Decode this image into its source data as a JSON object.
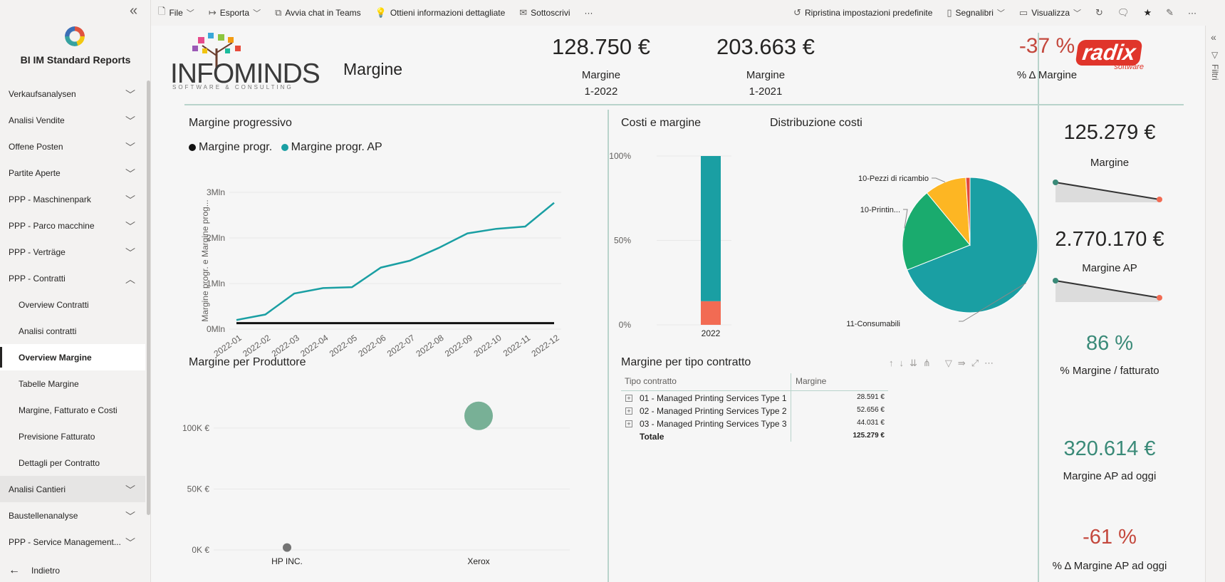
{
  "app": {
    "title": "BI IM Standard Reports"
  },
  "nav": {
    "items": [
      {
        "label": "Verkaufsanalysen",
        "level": 1,
        "chevron": "v"
      },
      {
        "label": "Analisi Vendite",
        "level": 1,
        "chevron": "v"
      },
      {
        "label": "Offene Posten",
        "level": 1,
        "chevron": "v"
      },
      {
        "label": "Partite Aperte",
        "level": 1,
        "chevron": "v"
      },
      {
        "label": "PPP - Maschinenpark",
        "level": 1,
        "chevron": "v"
      },
      {
        "label": "PPP - Parco macchine",
        "level": 1,
        "chevron": "v"
      },
      {
        "label": "PPP - Verträge",
        "level": 1,
        "chevron": "v"
      },
      {
        "label": "PPP - Contratti",
        "level": 1,
        "chevron": "^"
      },
      {
        "label": "Overview Contratti",
        "level": 2
      },
      {
        "label": "Analisi contratti",
        "level": 2
      },
      {
        "label": "Overview Margine",
        "level": 2,
        "active": true
      },
      {
        "label": "Tabelle Margine",
        "level": 2
      },
      {
        "label": "Margine, Fatturato e Costi",
        "level": 2
      },
      {
        "label": "Previsione Fatturato",
        "level": 2
      },
      {
        "label": "Dettagli per Contratto",
        "level": 2
      },
      {
        "label": "Analisi Cantieri",
        "level": 1,
        "chevron": "v",
        "gray": true
      },
      {
        "label": "Baustellenanalyse",
        "level": 1,
        "chevron": "v"
      },
      {
        "label": "PPP - Service Management...",
        "level": 1,
        "chevron": "v"
      }
    ],
    "back": "Indietro"
  },
  "toolbar": {
    "file": "File",
    "export": "Esporta",
    "teams": "Avvia chat in Teams",
    "insights": "Ottieni informazioni dettagliate",
    "subscribe": "Sottoscrivi",
    "more": "···",
    "reset": "Ripristina impostazioni predefinite",
    "bookmarks": "Segnalibri",
    "view": "Visualizza"
  },
  "filters": {
    "label": "Filtri"
  },
  "header": {
    "brand": "INFOMINDS",
    "brand_tagline": "SOFTWARE & CONSULTING",
    "page_title": "Margine"
  },
  "kpis": [
    {
      "value": "128.750 €",
      "label": "Margine",
      "sub": "1-2022"
    },
    {
      "value": "203.663 €",
      "label": "Margine",
      "sub": "1-2021"
    },
    {
      "value": "-37 %",
      "label": "% Δ Margine"
    }
  ],
  "radix": {
    "logo": "radix",
    "tagline": "software"
  },
  "side_kpis": [
    {
      "value": "125.279 €",
      "label": "Margine"
    },
    {
      "value": "2.770.170 €",
      "label": "Margine AP"
    },
    {
      "value": "86 %",
      "label": "% Margine / fatturato"
    },
    {
      "value": "320.614 €",
      "label": "Margine AP ad oggi"
    },
    {
      "value": "-61 %",
      "label": "% Δ Margine AP ad oggi"
    }
  ],
  "colors": {
    "teal": "#1a9fa3",
    "red": "#c4483d",
    "green": "#3a8a78",
    "orange": "#f26b53",
    "yellow": "#fdb623",
    "pie_green": "#1aab6e"
  },
  "chart_data": [
    {
      "type": "line",
      "title": "Margine progressivo",
      "ylabel": "Margine progr. e Margine prog...",
      "x": [
        "2022-01",
        "2022-02",
        "2022-03",
        "2022-04",
        "2022-05",
        "2022-06",
        "2022-07",
        "2022-08",
        "2022-09",
        "2022-10",
        "2022-11",
        "2022-12"
      ],
      "yticks": [
        "0Mln",
        "1Mln",
        "2Mln",
        "3Mln"
      ],
      "ylim": [
        0,
        3
      ],
      "series": [
        {
          "name": "Margine progr.",
          "color": "#111111",
          "values": [
            0.13,
            0.13,
            0.13,
            0.13,
            0.13,
            0.13,
            0.13,
            0.13,
            0.13,
            0.13,
            0.13,
            0.13
          ]
        },
        {
          "name": "Margine progr. AP",
          "color": "#1a9fa3",
          "values": [
            0.2,
            0.32,
            0.78,
            0.9,
            0.92,
            1.35,
            1.5,
            1.78,
            2.1,
            2.2,
            2.25,
            2.77
          ]
        }
      ]
    },
    {
      "type": "bar",
      "title": "Costi e margine",
      "categories": [
        "2022"
      ],
      "yticks": [
        "0%",
        "50%",
        "100%"
      ],
      "stack": [
        {
          "color": "#f26b53",
          "value": 0.14
        },
        {
          "color": "#1a9fa3",
          "value": 0.86
        }
      ]
    },
    {
      "type": "pie",
      "title": "Distribuzione costi",
      "slices": [
        {
          "label": "11-Consumabili",
          "value": 0.69,
          "color": "#1a9fa3"
        },
        {
          "label": "10-Printin...",
          "value": 0.2,
          "color": "#1aab6e"
        },
        {
          "label": "10-Pezzi di ricambio",
          "value": 0.1,
          "color": "#fdb623"
        },
        {
          "label": "",
          "value": 0.01,
          "color": "#e24a3b"
        }
      ]
    },
    {
      "type": "scatter",
      "title": "Margine per Produttore",
      "categories": [
        "HP INC.",
        "Xerox"
      ],
      "yticks": [
        "0K €",
        "50K €",
        "100K €"
      ],
      "ylim": [
        0,
        135
      ],
      "points": [
        {
          "category": "HP INC.",
          "value": 2,
          "color": "#666666"
        },
        {
          "category": "Xerox",
          "value": 110,
          "color": "#6aa88c"
        }
      ]
    },
    {
      "type": "table",
      "title": "Margine per tipo contratto",
      "columns": [
        "Tipo contratto",
        "Margine"
      ],
      "rows": [
        {
          "name": "01 - Managed Printing Services Type 1",
          "value": "28.591 €"
        },
        {
          "name": "02 - Managed Printing Services Type 2",
          "value": "52.656 €"
        },
        {
          "name": "03 - Managed Printing Services Type 3",
          "value": "44.031 €"
        }
      ],
      "total": {
        "name": "Totale",
        "value": "125.279 €"
      }
    }
  ]
}
